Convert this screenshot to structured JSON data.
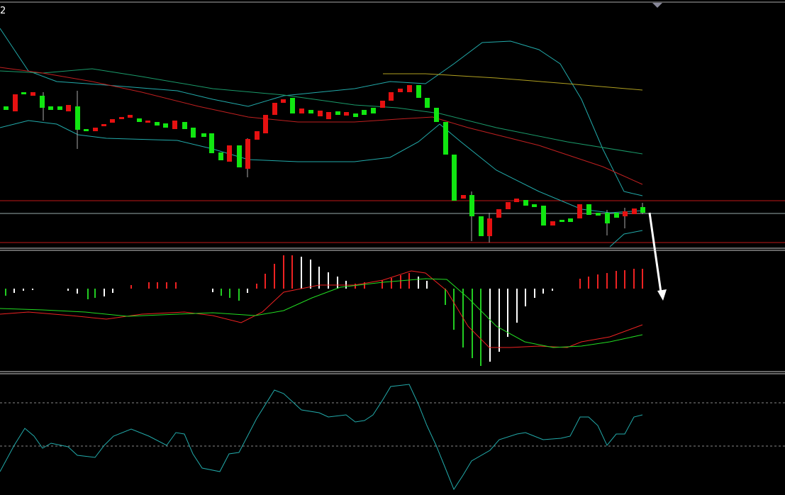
{
  "header": {
    "label": "2"
  }
}
